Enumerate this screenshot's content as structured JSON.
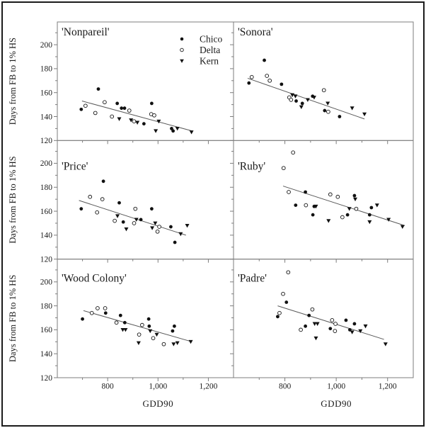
{
  "figure": {
    "y_axis_label": "Days from FB to 1% HS",
    "x_axis_label": "GDD90",
    "colors": {
      "background": "#ffffff",
      "frame": "#1b1b1b",
      "panel_border": "#7d7d7d",
      "marker": "#111111",
      "trendline": "#5a5a5a"
    },
    "legend": [
      {
        "label": "Chico",
        "marker": "filled-circle"
      },
      {
        "label": "Delta",
        "marker": "open-circle"
      },
      {
        "label": "Kern",
        "marker": "filled-triangle"
      }
    ],
    "axes": {
      "xlim": [
        600,
        1300
      ],
      "ylim": [
        120,
        219
      ],
      "x_major_ticks": [
        800,
        1000,
        1200
      ],
      "x_minor_ticks": [
        700,
        900,
        1100
      ],
      "x_tick_labels": [
        "800",
        "1,000",
        "1,200"
      ],
      "y_major_ticks": [
        120,
        140,
        160,
        180,
        200
      ],
      "y_minor_ticks": [
        130,
        150,
        170,
        190,
        210
      ],
      "y_tick_labels": [
        "120",
        "140",
        "160",
        "180",
        "200"
      ],
      "grid": false,
      "legend_position": "top-right of first panel"
    }
  },
  "chart_data": [
    {
      "type": "scatter",
      "title": "'Nonpareil'",
      "xlabel": "GDD90",
      "ylabel": "Days from FB to 1% HS",
      "xlim": [
        600,
        1300
      ],
      "ylim": [
        120,
        219
      ],
      "series": [
        {
          "name": "Chico",
          "marker": "filled-circle",
          "points": [
            [
              695,
              146
            ],
            [
              763,
              163
            ],
            [
              838,
              151
            ],
            [
              855,
              147
            ],
            [
              867,
              147
            ],
            [
              944,
              134
            ],
            [
              975,
              151
            ],
            [
              1054,
              130
            ],
            [
              1060,
              128
            ]
          ]
        },
        {
          "name": "Delta",
          "marker": "open-circle",
          "points": [
            [
              712,
              149
            ],
            [
              751,
              143
            ],
            [
              788,
              152
            ],
            [
              817,
              140
            ],
            [
              886,
              145
            ],
            [
              905,
              136
            ],
            [
              973,
              142
            ],
            [
              985,
              141
            ]
          ]
        },
        {
          "name": "Kern",
          "marker": "filled-triangle",
          "points": [
            [
              846,
              138
            ],
            [
              893,
              137
            ],
            [
              918,
              135
            ],
            [
              991,
              128
            ],
            [
              1003,
              136
            ],
            [
              1077,
              130
            ],
            [
              1133,
              127
            ]
          ]
        }
      ],
      "trendline": {
        "x1": 698,
        "y1": 153,
        "x2": 1135,
        "y2": 128
      }
    },
    {
      "type": "scatter",
      "title": "'Sonora'",
      "xlabel": "GDD90",
      "ylabel": "Days from FB to 1% HS",
      "xlim": [
        600,
        1300
      ],
      "ylim": [
        120,
        219
      ],
      "series": [
        {
          "name": "Chico",
          "marker": "filled-circle",
          "points": [
            [
              660,
              168
            ],
            [
              720,
              187
            ],
            [
              787,
              167
            ],
            [
              844,
              153
            ],
            [
              868,
              151
            ],
            [
              908,
              157
            ],
            [
              955,
              145
            ],
            [
              1013,
              140
            ]
          ]
        },
        {
          "name": "Delta",
          "marker": "open-circle",
          "points": [
            [
              671,
              173
            ],
            [
              730,
              174
            ],
            [
              741,
              170
            ],
            [
              817,
              156
            ],
            [
              824,
              154
            ],
            [
              952,
              162
            ],
            [
              969,
              144
            ]
          ]
        },
        {
          "name": "Kern",
          "marker": "filled-triangle",
          "points": [
            [
              829,
              158
            ],
            [
              841,
              157
            ],
            [
              864,
              148
            ],
            [
              889,
              154
            ],
            [
              914,
              156
            ],
            [
              967,
              151
            ],
            [
              1062,
              147
            ],
            [
              1110,
              142
            ]
          ]
        }
      ],
      "trendline": {
        "x1": 655,
        "y1": 172,
        "x2": 1110,
        "y2": 138
      }
    },
    {
      "type": "scatter",
      "title": "'Price'",
      "xlabel": "GDD90",
      "ylabel": "Days from FB to 1% HS",
      "xlim": [
        600,
        1300
      ],
      "ylim": [
        120,
        219
      ],
      "series": [
        {
          "name": "Chico",
          "marker": "filled-circle",
          "points": [
            [
              695,
              162
            ],
            [
              783,
              185
            ],
            [
              846,
              167
            ],
            [
              862,
              151
            ],
            [
              932,
              153
            ],
            [
              975,
              162
            ],
            [
              1051,
              147
            ],
            [
              1067,
              134
            ]
          ]
        },
        {
          "name": "Delta",
          "marker": "open-circle",
          "points": [
            [
              730,
              172
            ],
            [
              758,
              159
            ],
            [
              779,
              170
            ],
            [
              828,
              152
            ],
            [
              905,
              150
            ],
            [
              910,
              162
            ],
            [
              998,
              143
            ],
            [
              1005,
              147
            ]
          ]
        },
        {
          "name": "Kern",
          "marker": "filled-triangle",
          "points": [
            [
              839,
              156
            ],
            [
              874,
              145
            ],
            [
              914,
              153
            ],
            [
              977,
              146
            ],
            [
              989,
              150
            ],
            [
              1090,
              141
            ],
            [
              1116,
              148
            ]
          ]
        }
      ],
      "trendline": {
        "x1": 686,
        "y1": 169,
        "x2": 1111,
        "y2": 140
      }
    },
    {
      "type": "scatter",
      "title": "'Ruby'",
      "xlabel": "GDD90",
      "ylabel": "Days from FB to 1% HS",
      "xlim": [
        600,
        1300
      ],
      "ylim": [
        120,
        219
      ],
      "series": [
        {
          "name": "Chico",
          "marker": "filled-circle",
          "points": [
            [
              842,
              165
            ],
            [
              880,
              176
            ],
            [
              909,
              157
            ],
            [
              914,
              164
            ],
            [
              1044,
              157
            ],
            [
              1071,
              173
            ],
            [
              1130,
              157
            ],
            [
              1137,
              163
            ]
          ]
        },
        {
          "name": "Delta",
          "marker": "open-circle",
          "points": [
            [
              795,
              196
            ],
            [
              832,
              209
            ],
            [
              815,
              176
            ],
            [
              882,
              165
            ],
            [
              977,
              174
            ],
            [
              1006,
              172
            ],
            [
              1024,
              155
            ],
            [
              1078,
              162
            ]
          ]
        },
        {
          "name": "Kern",
          "marker": "filled-triangle",
          "points": [
            [
              921,
              164
            ],
            [
              970,
              152
            ],
            [
              1051,
              162
            ],
            [
              1074,
              170
            ],
            [
              1130,
              151
            ],
            [
              1159,
              165
            ],
            [
              1204,
              153
            ],
            [
              1258,
              147
            ]
          ]
        }
      ],
      "trendline": {
        "x1": 793,
        "y1": 181,
        "x2": 1267,
        "y2": 148
      }
    },
    {
      "type": "scatter",
      "title": "'Wood Colony'",
      "xlabel": "GDD90",
      "ylabel": "Days from FB to 1% HS",
      "xlim": [
        600,
        1300
      ],
      "ylim": [
        120,
        219
      ],
      "series": [
        {
          "name": "Chico",
          "marker": "filled-circle",
          "points": [
            [
              700,
              169
            ],
            [
              792,
              174
            ],
            [
              851,
              172
            ],
            [
              868,
              166
            ],
            [
              963,
              169
            ],
            [
              965,
              163
            ],
            [
              1058,
              159
            ],
            [
              1065,
              163
            ]
          ]
        },
        {
          "name": "Delta",
          "marker": "open-circle",
          "points": [
            [
              737,
              174
            ],
            [
              760,
              178
            ],
            [
              790,
              178
            ],
            [
              835,
              166
            ],
            [
              925,
              156
            ],
            [
              937,
              164
            ],
            [
              981,
              153
            ],
            [
              1023,
              148
            ]
          ]
        },
        {
          "name": "Kern",
          "marker": "filled-triangle",
          "points": [
            [
              860,
              160
            ],
            [
              871,
              160
            ],
            [
              923,
              149
            ],
            [
              969,
              159
            ],
            [
              995,
              156
            ],
            [
              1062,
              148
            ],
            [
              1077,
              149
            ],
            [
              1130,
              150
            ]
          ]
        }
      ],
      "trendline": {
        "x1": 704,
        "y1": 176,
        "x2": 1135,
        "y2": 150
      }
    },
    {
      "type": "scatter",
      "title": "'Padre'",
      "xlabel": "GDD90",
      "ylabel": "Days from FB to 1% HS",
      "xlim": [
        600,
        1300
      ],
      "ylim": [
        120,
        219
      ],
      "series": [
        {
          "name": "Chico",
          "marker": "filled-circle",
          "points": [
            [
              772,
              171
            ],
            [
              806,
              183
            ],
            [
              880,
              163
            ],
            [
              894,
              172
            ],
            [
              977,
              161
            ],
            [
              1038,
              168
            ],
            [
              1053,
              160
            ],
            [
              1071,
              165
            ]
          ]
        },
        {
          "name": "Delta",
          "marker": "open-circle",
          "points": [
            [
              779,
              174
            ],
            [
              793,
              190
            ],
            [
              813,
              208
            ],
            [
              862,
              160
            ],
            [
              907,
              177
            ],
            [
              984,
              168
            ],
            [
              995,
              159
            ],
            [
              997,
              165
            ]
          ]
        },
        {
          "name": "Kern",
          "marker": "filled-triangle",
          "points": [
            [
              916,
              165
            ],
            [
              927,
              165
            ],
            [
              921,
              153
            ],
            [
              1062,
              158
            ],
            [
              1094,
              159
            ],
            [
              1114,
              163
            ],
            [
              1192,
              148
            ]
          ]
        }
      ],
      "trendline": {
        "x1": 772,
        "y1": 180,
        "x2": 1186,
        "y2": 152
      }
    }
  ]
}
